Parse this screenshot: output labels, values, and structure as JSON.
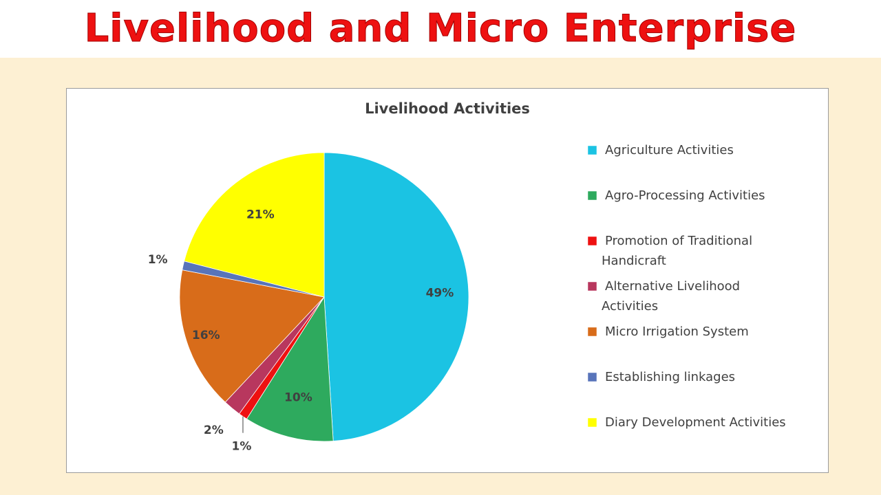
{
  "page": {
    "title": "Livelihood and Micro Enterprise",
    "title_color": "#ee1111",
    "band_color": "#fdf0d3"
  },
  "chart_data": {
    "type": "pie",
    "title": "Livelihood Activities",
    "legend_position": "right",
    "slices": [
      {
        "label": "Agriculture Activities",
        "value": 49,
        "display": "49%",
        "color": "#1bc3e3"
      },
      {
        "label": "Agro-Processing Activities",
        "value": 10,
        "display": "10%",
        "color": "#2eaa5e"
      },
      {
        "label": "Promotion of  Traditional Handicraft",
        "value": 1,
        "display": "1%",
        "color": "#ee1111"
      },
      {
        "label": "Alternative Livelihood Activities",
        "value": 2,
        "display": "2%",
        "color": "#b8375e"
      },
      {
        "label": "Micro Irrigation System",
        "value": 16,
        "display": "16%",
        "color": "#d86c1a"
      },
      {
        "label": "Establishing linkages",
        "value": 1,
        "display": "1%",
        "color": "#5874ba"
      },
      {
        "label": "Diary Development Activities",
        "value": 21,
        "display": "21%",
        "color": "#ffff00"
      }
    ]
  }
}
